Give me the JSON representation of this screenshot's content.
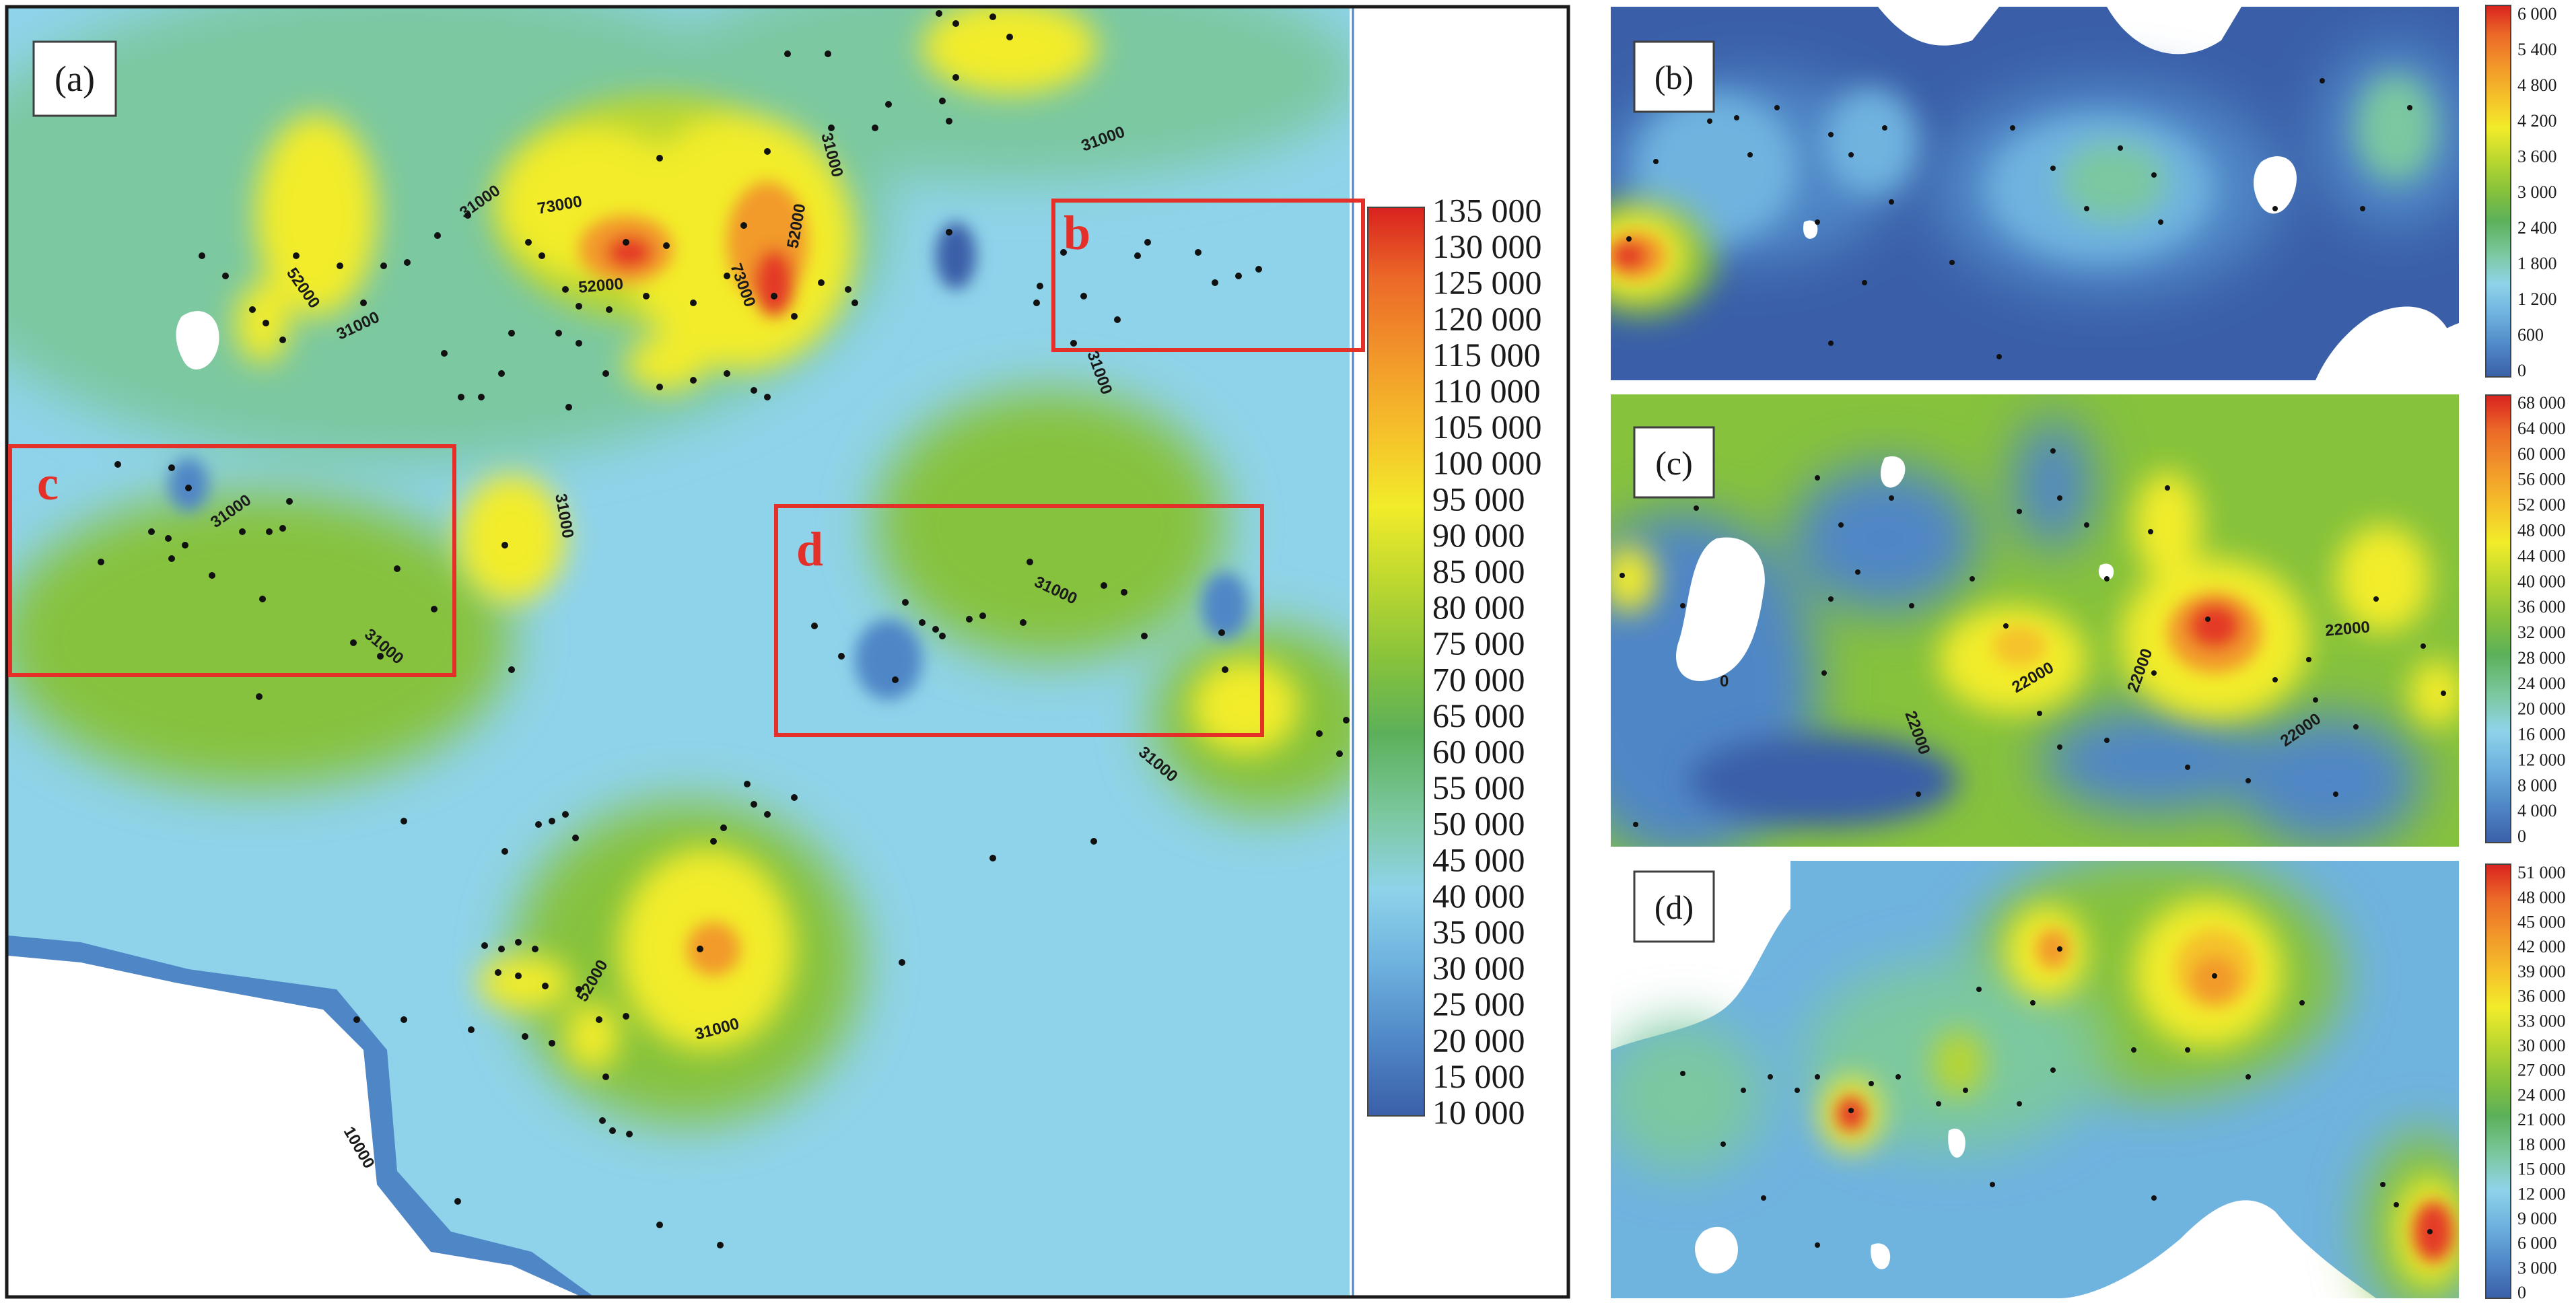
{
  "panels": {
    "a": {
      "label": "(a)",
      "legend_ticks": [
        "135 000",
        "130 000",
        "125 000",
        "120 000",
        "115 000",
        "110 000",
        "105 000",
        "100 000",
        "95 000",
        "90 000",
        "85 000",
        "80 000",
        "75 000",
        "70 000",
        "65 000",
        "60 000",
        "55 000",
        "50 000",
        "45 000",
        "40 000",
        "35 000",
        "30 000",
        "25 000",
        "20 000",
        "15 000",
        "10 000"
      ],
      "contour_labels": [
        "31000",
        "52000",
        "31000",
        "73000",
        "52000",
        "73000",
        "52000",
        "31000",
        "31000",
        "31000",
        "31000",
        "31000",
        "31000",
        "31000",
        "31000",
        "52000",
        "31000",
        "10000"
      ],
      "regions": [
        {
          "letter": "b"
        },
        {
          "letter": "c"
        },
        {
          "letter": "d"
        }
      ]
    },
    "b": {
      "label": "(b)",
      "legend_ticks": [
        "6 000",
        "5 400",
        "4 800",
        "4 200",
        "3 600",
        "3 000",
        "2 400",
        "1 800",
        "1 200",
        "600",
        "0"
      ]
    },
    "c": {
      "label": "(c)",
      "legend_ticks": [
        "68 000",
        "64 000",
        "60 000",
        "56 000",
        "52 000",
        "48 000",
        "44 000",
        "40 000",
        "36 000",
        "32 000",
        "28 000",
        "24 000",
        "20 000",
        "16 000",
        "12 000",
        "8 000",
        "4 000",
        "0"
      ],
      "contour_labels": [
        "22000",
        "22000",
        "22000",
        "22000",
        "22000",
        "0"
      ]
    },
    "d": {
      "label": "(d)",
      "legend_ticks": [
        "51 000",
        "48 000",
        "45 000",
        "42 000",
        "39 000",
        "36 000",
        "33 000",
        "30 000",
        "27 000",
        "24 000",
        "21 000",
        "18 000",
        "15 000",
        "12 000",
        "9 000",
        "6 000",
        "3 000",
        "0"
      ]
    }
  },
  "colors": {
    "ramp": [
      "#3a5fa8",
      "#4f86c6",
      "#6fb3df",
      "#8fd3ea",
      "#a9ddd0",
      "#7cc8a0",
      "#5cb05a",
      "#86c23c",
      "#b8d630",
      "#f2ec2a",
      "#f5c22a",
      "#f29a2a",
      "#ec6a28",
      "#e43a26",
      "#d9221f"
    ],
    "frame": "#1a1a1a",
    "region_box": "#e5302a",
    "region_text": "#e5302a",
    "background": "#ffffff",
    "field_base": "#8fd3ea"
  }
}
